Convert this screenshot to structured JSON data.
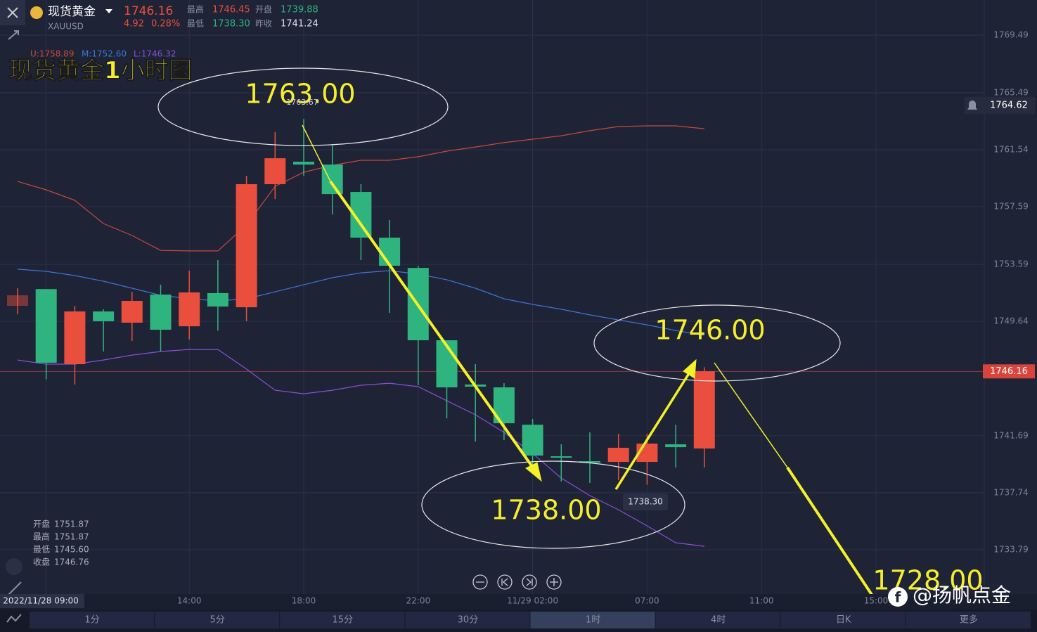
{
  "header": {
    "name": "现货黄金",
    "symbol": "XAUUSD",
    "price": "1746.16",
    "change": "4.92",
    "change_pct": "0.28%",
    "high_label": "最高",
    "high": "1746.45",
    "open_label": "开盘",
    "open": "1739.88",
    "low_label": "最低",
    "low": "1738.30",
    "prev_label": "昨收",
    "prev": "1741.24"
  },
  "indicator": {
    "upper": "U:1758.89",
    "middle": "M:1752.60",
    "lower": "L:1746.32"
  },
  "overlay_title": "现货黄金1小时图",
  "hover_time": "2022/11/28 09:00",
  "hover_ohlc": [
    {
      "label": "开盘",
      "value": "1751.87"
    },
    {
      "label": "最高",
      "value": "1751.87"
    },
    {
      "label": "最低",
      "value": "1745.60"
    },
    {
      "label": "收盘",
      "value": "1746.76"
    }
  ],
  "annotations": [
    "1763.00",
    "1746.00",
    "1738.00",
    "1728.00"
  ],
  "tags": {
    "peak": "1763.67",
    "trough": "1738.30"
  },
  "timeframes": [
    "1分",
    "5分",
    "15分",
    "30分",
    "1时",
    "4时",
    "日K",
    "更多"
  ],
  "watermark": "@扬帆点金",
  "chart_data": {
    "type": "candlestick",
    "categories": [
      null,
      "2022/11/28 09:00",
      null,
      null,
      null,
      null,
      "14:00",
      null,
      null,
      null,
      "18:00",
      null,
      null,
      null,
      "22:00",
      null,
      null,
      null,
      "11/29 02:00",
      null,
      null,
      null,
      "07:00",
      null,
      null,
      null,
      "11:00",
      null,
      null,
      null,
      "15:00"
    ],
    "open": [
      1750.71,
      1751.87,
      1746.66,
      1750.32,
      1749.54,
      1751.49,
      1749.29,
      1751.59,
      1750.61,
      1759.15,
      1760.71,
      1760.51,
      1758.61,
      1755.44,
      1753.34,
      1748.32,
      1745.25,
      1745.05,
      1742.46,
      1740.27,
      1739.93,
      1739.88,
      1739.88,
      1741.1,
      1740.81,
      null,
      null,
      null,
      null,
      null,
      null
    ],
    "high": [
      1751.93,
      1751.87,
      1750.71,
      1750.47,
      1751.68,
      1752.17,
      1753.15,
      1753.88,
      1759.73,
      1762.76,
      1763.67,
      1761.93,
      1759.15,
      1756.66,
      1753.49,
      1748.32,
      1746.66,
      1745.34,
      1742.86,
      1741.1,
      1741.93,
      1741.83,
      1741.83,
      1742.46,
      1746.45,
      null,
      null,
      null,
      null,
      null,
      null
    ],
    "low": [
      1750.12,
      1745.6,
      1745.25,
      1747.54,
      1748.27,
      1747.54,
      1748.37,
      1748.98,
      1749.64,
      1758.12,
      1759.73,
      1757.05,
      1753.88,
      1750.22,
      1745.2,
      1742.9,
      1741.29,
      1741.39,
      1739.49,
      1738.52,
      1738.42,
      1738.61,
      1738.3,
      1739.49,
      1739.49,
      null,
      null,
      null,
      null,
      null,
      null
    ],
    "close": [
      1751.44,
      1746.76,
      1750.32,
      1749.64,
      1751.05,
      1749.05,
      1751.64,
      1750.66,
      1759.15,
      1760.95,
      1760.51,
      1758.46,
      1755.44,
      1753.49,
      1748.32,
      1745.05,
      1745.1,
      1742.56,
      1740.32,
      1740.17,
      1739.83,
      1740.86,
      1741.15,
      1740.9,
      1746.16,
      null,
      null,
      null,
      null,
      null,
      null
    ],
    "up_color": "#ea4f3e",
    "down_color": "#2fb47f",
    "upper_band": {
      "color": "#c8493c",
      "values": [
        1759.34,
        1758.76,
        1758.03,
        1756.42,
        1755.59,
        1754.56,
        1754.52,
        1754.52,
        1756.32,
        1759.0,
        1759.98,
        1760.46,
        1760.81,
        1760.81,
        1761.05,
        1761.44,
        1761.73,
        1762.03,
        1762.27,
        1762.51,
        1762.86,
        1763.15,
        1763.2,
        1763.2,
        1763.0,
        null,
        null,
        null,
        null,
        null,
        null
      ]
    },
    "middle_band": {
      "color": "#3f74d6",
      "values": [
        1753.25,
        1753.1,
        1752.81,
        1752.42,
        1751.93,
        1751.44,
        1751.2,
        1751.05,
        1751.2,
        1751.68,
        1752.17,
        1752.66,
        1753.0,
        1753.15,
        1752.91,
        1752.52,
        1751.93,
        1751.2,
        1750.81,
        1750.47,
        1750.08,
        1749.73,
        1749.39,
        1749.0,
        1748.66,
        null,
        null,
        null,
        null,
        null,
        null
      ]
    },
    "lower_band": {
      "color": "#8b4fd6",
      "values": [
        1746.95,
        1746.66,
        1746.66,
        1746.95,
        1747.29,
        1747.54,
        1747.68,
        1747.68,
        1746.32,
        1744.85,
        1744.61,
        1744.85,
        1745.2,
        1745.34,
        1745.1,
        1744.12,
        1743.15,
        1741.93,
        1740.46,
        1738.76,
        1737.54,
        1736.56,
        1735.44,
        1734.27,
        1734.02,
        null,
        null,
        null,
        null,
        null,
        null
      ]
    },
    "ylim": [
      1730.71,
      1771.93
    ],
    "yticks": [
      1769.49,
      1765.49,
      1761.54,
      1757.59,
      1753.59,
      1749.64,
      1741.69,
      1737.74,
      1733.79
    ],
    "current_price": 1746.16,
    "alert_price": 1764.62,
    "grid": true
  }
}
